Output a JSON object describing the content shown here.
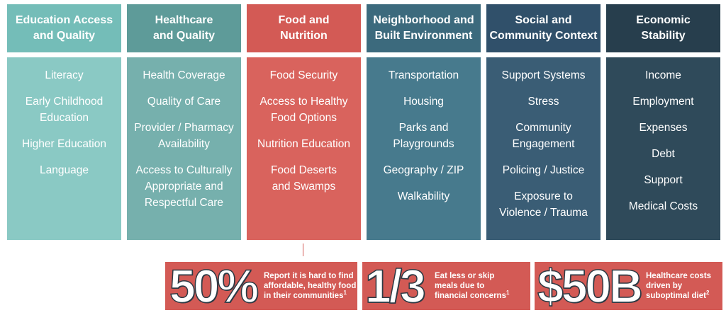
{
  "colors": {
    "education": [
      "#74bdb8",
      "#8ac9c4"
    ],
    "healthcare": [
      "#5e9b99",
      "#76b0ad"
    ],
    "food": [
      "#d35a55",
      "#d9635d"
    ],
    "neighborhood": [
      "#3c6a7d",
      "#477a8d"
    ],
    "social": [
      "#30506a",
      "#3a5d75"
    ],
    "economic": [
      "#273e4d",
      "#2f4a5a"
    ],
    "stat_bg": "#d35a55"
  },
  "columns": [
    {
      "id": "education",
      "title_lines": [
        "Education Access",
        "and Quality"
      ],
      "items": [
        "Literacy",
        "Early Childhood\nEducation",
        "Higher Education",
        "Language"
      ]
    },
    {
      "id": "healthcare",
      "title_lines": [
        "Healthcare",
        "and Quality"
      ],
      "items": [
        "Health Coverage",
        "Quality of Care",
        "Provider / Pharmacy\nAvailability",
        "Access to Culturally\nAppropriate and\nRespectful Care"
      ]
    },
    {
      "id": "food",
      "title_lines": [
        "Food and",
        "Nutrition"
      ],
      "items": [
        "Food Security",
        "Access to Healthy\nFood Options",
        "Nutrition Education",
        "Food Deserts\nand Swamps"
      ]
    },
    {
      "id": "neighborhood",
      "title_lines": [
        "Neighborhood and",
        "Built Environment"
      ],
      "items": [
        "Transportation",
        "Housing",
        "Parks and\nPlaygrounds",
        "Geography / ZIP",
        "Walkability"
      ]
    },
    {
      "id": "social",
      "title_lines": [
        "Social and",
        "Community Context"
      ],
      "items": [
        "Support Systems",
        "Stress",
        "Community\nEngagement",
        "Policing / Justice",
        "Exposure to\nViolence / Trauma"
      ]
    },
    {
      "id": "economic",
      "title_lines": [
        "Economic",
        "Stability"
      ],
      "items": [
        "Income",
        "Employment",
        "Expenses",
        "Debt",
        "Support",
        "Medical Costs"
      ]
    }
  ],
  "stats": [
    {
      "id": "stat-50-percent",
      "value": "50%",
      "description": "Report it is hard to find\naffordable, healthy food\nin their communities",
      "footnote": "1"
    },
    {
      "id": "stat-one-third",
      "value": "1/3",
      "description": "Eat less or skip\nmeals due to\nfinancial concerns",
      "footnote": "1"
    },
    {
      "id": "stat-50-billion",
      "value": "$50B",
      "description": "Healthcare costs\ndriven by\nsuboptimal diet",
      "footnote": "2"
    }
  ]
}
